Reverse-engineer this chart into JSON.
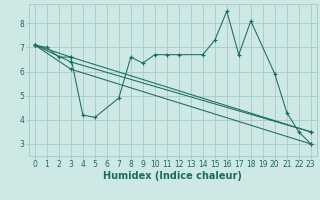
{
  "background_color": "#cde8e5",
  "grid_color": "#a4cbc7",
  "line_color": "#1a6b62",
  "xlabel": "Humidex (Indice chaleur)",
  "xlim": [
    -0.5,
    23.5
  ],
  "ylim": [
    2.5,
    8.8
  ],
  "xticks": [
    0,
    1,
    2,
    3,
    4,
    5,
    6,
    7,
    8,
    9,
    10,
    11,
    12,
    13,
    14,
    15,
    16,
    17,
    18,
    19,
    20,
    21,
    22,
    23
  ],
  "yticks": [
    3,
    4,
    5,
    6,
    7,
    8
  ],
  "series": [
    {
      "x": [
        0,
        1,
        2,
        3,
        4,
        5,
        7,
        8,
        9,
        10,
        11,
        12,
        14,
        15,
        16,
        17,
        18,
        20,
        21,
        22,
        23
      ],
      "y": [
        7.1,
        7.0,
        6.6,
        6.6,
        4.2,
        4.1,
        4.9,
        6.6,
        6.35,
        6.7,
        6.7,
        6.7,
        6.7,
        7.3,
        8.5,
        6.7,
        8.1,
        5.9,
        4.3,
        3.5,
        3.0
      ]
    },
    {
      "x": [
        0,
        3,
        23
      ],
      "y": [
        7.1,
        6.6,
        3.5
      ]
    },
    {
      "x": [
        0,
        3,
        23
      ],
      "y": [
        7.1,
        6.4,
        3.5
      ]
    },
    {
      "x": [
        0,
        3,
        23
      ],
      "y": [
        7.1,
        6.1,
        3.0
      ]
    }
  ]
}
